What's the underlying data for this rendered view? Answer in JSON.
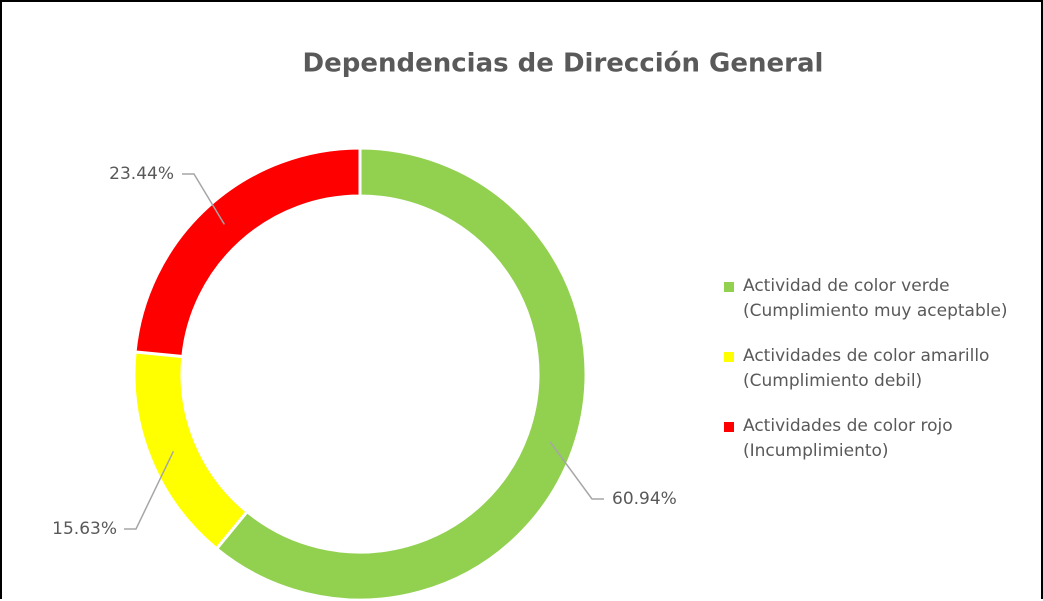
{
  "chart_data": {
    "type": "donut",
    "title": "Dependencias de Dirección General",
    "categories": [
      "Actividad de color verde\n(Cumplimiento muy aceptable)",
      "Actividades de color amarillo\n(Cumplimiento debil)",
      "Actividades de color rojo\n(Incumplimiento)"
    ],
    "values": [
      60.94,
      15.63,
      23.44
    ],
    "value_labels": [
      "60.94%",
      "15.63%",
      "23.44%"
    ],
    "colors": [
      "#92d050",
      "#ffff00",
      "#ff0000"
    ],
    "legend": "right"
  }
}
